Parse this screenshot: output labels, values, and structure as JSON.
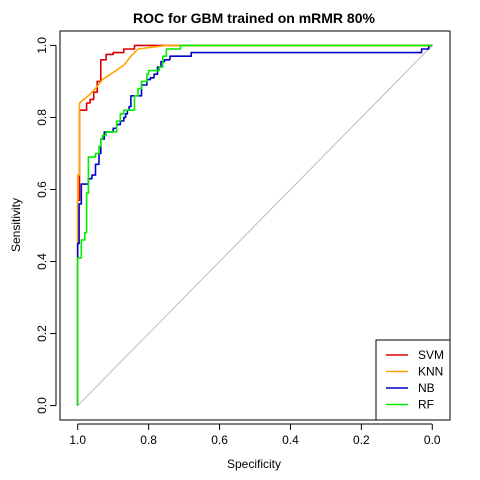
{
  "chart_data": {
    "type": "line",
    "title": "ROC for GBM trained on mRMR 80%",
    "xlabel": "Specificity",
    "ylabel": "Sensitivity",
    "xlim": [
      1.05,
      -0.05
    ],
    "ylim": [
      -0.04,
      1.04
    ],
    "x_ticks": [
      1.0,
      0.8,
      0.6,
      0.4,
      0.2,
      0.0
    ],
    "y_ticks": [
      0.0,
      0.2,
      0.4,
      0.6,
      0.8,
      1.0
    ],
    "x_tick_labels": [
      "1.0",
      "0.8",
      "0.6",
      "0.4",
      "0.2",
      "0.0"
    ],
    "y_tick_labels": [
      "0.0",
      "0.2",
      "0.4",
      "0.6",
      "0.8",
      "1.0"
    ],
    "reference_line": {
      "color": "#bebebe",
      "points": [
        [
          1.0,
          0.0
        ],
        [
          0.0,
          1.0
        ]
      ]
    },
    "legend_position": "bottom-right",
    "series": [
      {
        "name": "SVM",
        "color": "#dd0000",
        "points": [
          [
            1.0,
            0.0
          ],
          [
            1.0,
            0.57
          ],
          [
            0.995,
            0.57
          ],
          [
            0.995,
            0.82
          ],
          [
            0.975,
            0.82
          ],
          [
            0.975,
            0.84
          ],
          [
            0.965,
            0.84
          ],
          [
            0.965,
            0.85
          ],
          [
            0.955,
            0.85
          ],
          [
            0.955,
            0.87
          ],
          [
            0.945,
            0.87
          ],
          [
            0.945,
            0.9
          ],
          [
            0.935,
            0.9
          ],
          [
            0.935,
            0.96
          ],
          [
            0.92,
            0.96
          ],
          [
            0.92,
            0.975
          ],
          [
            0.9,
            0.975
          ],
          [
            0.9,
            0.98
          ],
          [
            0.87,
            0.98
          ],
          [
            0.87,
            0.99
          ],
          [
            0.84,
            0.99
          ],
          [
            0.84,
            1.0
          ],
          [
            0.0,
            1.0
          ]
        ]
      },
      {
        "name": "KNN",
        "color": "#ffa500",
        "points": [
          [
            1.0,
            0.0
          ],
          [
            1.0,
            0.64
          ],
          [
            0.995,
            0.64
          ],
          [
            0.995,
            0.84
          ],
          [
            0.97,
            0.86
          ],
          [
            0.95,
            0.88
          ],
          [
            0.93,
            0.905
          ],
          [
            0.9,
            0.925
          ],
          [
            0.87,
            0.945
          ],
          [
            0.85,
            0.97
          ],
          [
            0.83,
            0.99
          ],
          [
            0.75,
            1.0
          ],
          [
            0.0,
            1.0
          ]
        ]
      },
      {
        "name": "NB",
        "color": "#0000cc",
        "points": [
          [
            1.0,
            0.0
          ],
          [
            1.0,
            0.45
          ],
          [
            0.996,
            0.45
          ],
          [
            0.996,
            0.56
          ],
          [
            0.99,
            0.56
          ],
          [
            0.99,
            0.615
          ],
          [
            0.97,
            0.615
          ],
          [
            0.97,
            0.63
          ],
          [
            0.96,
            0.63
          ],
          [
            0.96,
            0.64
          ],
          [
            0.95,
            0.64
          ],
          [
            0.95,
            0.67
          ],
          [
            0.94,
            0.67
          ],
          [
            0.94,
            0.7
          ],
          [
            0.935,
            0.7
          ],
          [
            0.935,
            0.74
          ],
          [
            0.925,
            0.74
          ],
          [
            0.925,
            0.76
          ],
          [
            0.9,
            0.76
          ],
          [
            0.9,
            0.77
          ],
          [
            0.89,
            0.77
          ],
          [
            0.89,
            0.78
          ],
          [
            0.88,
            0.78
          ],
          [
            0.88,
            0.79
          ],
          [
            0.87,
            0.79
          ],
          [
            0.87,
            0.8
          ],
          [
            0.865,
            0.8
          ],
          [
            0.865,
            0.81
          ],
          [
            0.86,
            0.81
          ],
          [
            0.86,
            0.82
          ],
          [
            0.855,
            0.82
          ],
          [
            0.855,
            0.83
          ],
          [
            0.85,
            0.83
          ],
          [
            0.85,
            0.86
          ],
          [
            0.82,
            0.86
          ],
          [
            0.82,
            0.89
          ],
          [
            0.805,
            0.89
          ],
          [
            0.805,
            0.905
          ],
          [
            0.795,
            0.905
          ],
          [
            0.795,
            0.91
          ],
          [
            0.785,
            0.91
          ],
          [
            0.785,
            0.92
          ],
          [
            0.775,
            0.92
          ],
          [
            0.775,
            0.94
          ],
          [
            0.765,
            0.94
          ],
          [
            0.765,
            0.955
          ],
          [
            0.755,
            0.955
          ],
          [
            0.755,
            0.96
          ],
          [
            0.74,
            0.96
          ],
          [
            0.74,
            0.97
          ],
          [
            0.68,
            0.97
          ],
          [
            0.68,
            0.98
          ],
          [
            0.03,
            0.98
          ],
          [
            0.03,
            0.99
          ],
          [
            0.01,
            0.99
          ],
          [
            0.01,
            1.0
          ],
          [
            0.0,
            1.0
          ]
        ]
      },
      {
        "name": "RF",
        "color": "#00ee00",
        "points": [
          [
            1.0,
            0.0
          ],
          [
            1.0,
            0.41
          ],
          [
            0.99,
            0.41
          ],
          [
            0.99,
            0.46
          ],
          [
            0.98,
            0.46
          ],
          [
            0.98,
            0.48
          ],
          [
            0.975,
            0.48
          ],
          [
            0.975,
            0.59
          ],
          [
            0.97,
            0.59
          ],
          [
            0.97,
            0.69
          ],
          [
            0.95,
            0.69
          ],
          [
            0.95,
            0.7
          ],
          [
            0.94,
            0.7
          ],
          [
            0.94,
            0.72
          ],
          [
            0.935,
            0.72
          ],
          [
            0.935,
            0.74
          ],
          [
            0.93,
            0.74
          ],
          [
            0.93,
            0.75
          ],
          [
            0.92,
            0.75
          ],
          [
            0.92,
            0.76
          ],
          [
            0.89,
            0.76
          ],
          [
            0.89,
            0.79
          ],
          [
            0.88,
            0.79
          ],
          [
            0.88,
            0.81
          ],
          [
            0.87,
            0.81
          ],
          [
            0.87,
            0.82
          ],
          [
            0.84,
            0.82
          ],
          [
            0.84,
            0.86
          ],
          [
            0.83,
            0.86
          ],
          [
            0.83,
            0.88
          ],
          [
            0.82,
            0.88
          ],
          [
            0.82,
            0.9
          ],
          [
            0.805,
            0.9
          ],
          [
            0.805,
            0.92
          ],
          [
            0.8,
            0.92
          ],
          [
            0.8,
            0.93
          ],
          [
            0.77,
            0.93
          ],
          [
            0.77,
            0.94
          ],
          [
            0.76,
            0.94
          ],
          [
            0.76,
            0.97
          ],
          [
            0.75,
            0.97
          ],
          [
            0.75,
            0.99
          ],
          [
            0.71,
            0.99
          ],
          [
            0.71,
            1.0
          ],
          [
            0.0,
            1.0
          ]
        ]
      }
    ]
  }
}
